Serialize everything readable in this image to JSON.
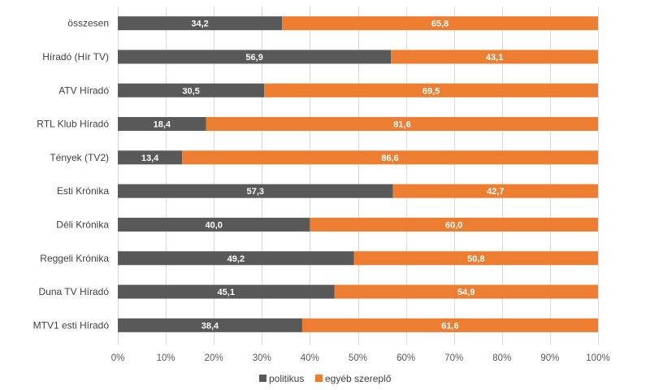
{
  "chart_data": {
    "type": "bar",
    "orientation": "horizontal",
    "stacked": "percent",
    "title": "",
    "xlabel": "",
    "ylabel": "",
    "xlim": [
      0,
      100
    ],
    "grid": true,
    "legend_position": "bottom",
    "categories": [
      "összesen",
      "Híradó (Hír TV)",
      "ATV Híradó",
      "RTL Klub Híradó",
      "Tények (TV2)",
      "Esti Krónika",
      "Déli Krónika",
      "Reggeli Krónika",
      "Duna TV Híradó",
      "MTV1 esti Híradó"
    ],
    "series": [
      {
        "name": "politikus",
        "color": "#595959",
        "values": [
          34.2,
          56.9,
          30.5,
          18.4,
          13.4,
          57.3,
          40.0,
          49.2,
          45.1,
          38.4
        ],
        "labels": [
          "34,2",
          "56,9",
          "30,5",
          "18,4",
          "13,4",
          "57,3",
          "40,0",
          "49,2",
          "45,1",
          "38,4"
        ]
      },
      {
        "name": "egyéb szereplő",
        "color": "#ed7d31",
        "values": [
          65.8,
          43.1,
          69.5,
          81.6,
          86.6,
          42.7,
          60.0,
          50.8,
          54.9,
          61.6
        ],
        "labels": [
          "65,8",
          "43,1",
          "69,5",
          "81,6",
          "86,6",
          "42,7",
          "60,0",
          "50,8",
          "54,9",
          "61,6"
        ]
      }
    ],
    "x_ticks": [
      0,
      10,
      20,
      30,
      40,
      50,
      60,
      70,
      80,
      90,
      100
    ],
    "x_tick_labels": [
      "0%",
      "10%",
      "20%",
      "30%",
      "40%",
      "50%",
      "60%",
      "70%",
      "80%",
      "90%",
      "100%"
    ]
  }
}
